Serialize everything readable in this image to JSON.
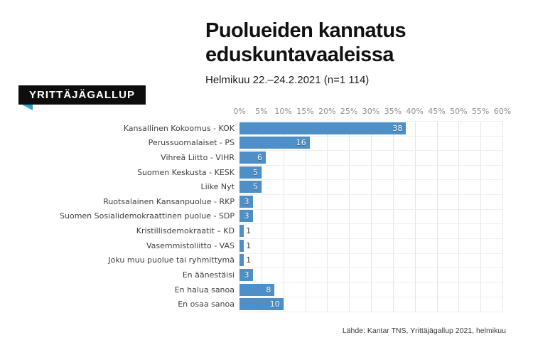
{
  "logo": {
    "text": "YRITTÄJÄGALLUP",
    "bg_color": "#0d0d0d",
    "accent_color": "#2f9fc9"
  },
  "header": {
    "title_line1": "Puolueiden kannatus",
    "title_line2": "eduskuntavaaleissa",
    "subtitle": "Helmikuu 22.–24.2.2021 (n=1 114)"
  },
  "footer": {
    "source": "Lähde: Kantar TNS, Yrittäjägallup 2021, helmikuu"
  },
  "chart_data": {
    "type": "bar",
    "orientation": "horizontal",
    "title": "Puolueiden kannatus eduskuntavaaleissa",
    "subtitle": "Helmikuu 22.–24.2.2021 (n=1 114)",
    "xlabel": "",
    "ylabel": "",
    "xlim": [
      0,
      60
    ],
    "x_ticks": [
      "0%",
      "5%",
      "10%",
      "15%",
      "20%",
      "25%",
      "30%",
      "35%",
      "40%",
      "45%",
      "50%",
      "55%",
      "60%"
    ],
    "grid": true,
    "bar_color": "#4e8fc7",
    "label_inside_color": "#ffffff",
    "label_outside_color": "#3f3f3f",
    "categories": [
      "Kansallinen Kokoomus - KOK",
      "Perussuomalaiset - PS",
      "Vihreä Liitto - VIHR",
      "Suomen Keskusta - KESK",
      "Liike Nyt",
      "Ruotsalainen Kansanpuolue - RKP",
      "Suomen Sosialidemokraattinen puolue - SDP",
      "Kristillisdemokraatit – KD",
      "Vasemmistoliitto - VAS",
      "Joku muu puolue tai ryhmittymä",
      "En äänestäisi",
      "En halua sanoa",
      "En osaa sanoa"
    ],
    "values": [
      38,
      16,
      6,
      5,
      5,
      3,
      3,
      1,
      1,
      1,
      3,
      8,
      10
    ]
  }
}
